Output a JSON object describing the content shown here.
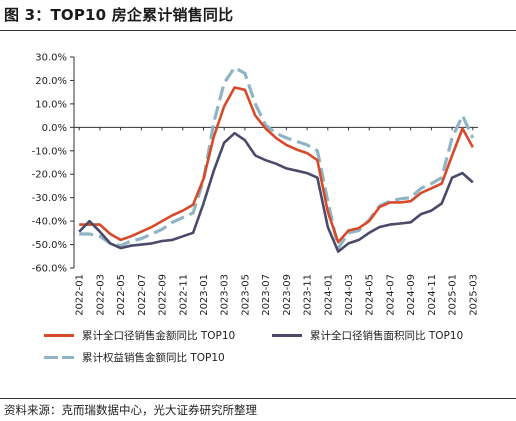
{
  "title": "图 3：TOP10 房企累计销售同比",
  "source": "资料来源：克而瑞数据中心，光大证券研究所整理",
  "chart_data": {
    "type": "line",
    "title": "图 3：TOP10 房企累计销售同比",
    "xlabel": "",
    "ylabel": "",
    "ylim": [
      -60,
      30
    ],
    "yticks": [
      30,
      20,
      10,
      0,
      -10,
      -20,
      -30,
      -40,
      -50,
      -60
    ],
    "ytick_labels": [
      "30.0%",
      "20.0%",
      "10.0%",
      "0.0%",
      "-10.0%",
      "-20.0%",
      "-30.0%",
      "-40.0%",
      "-50.0%",
      "-60.0%"
    ],
    "x": [
      "2022-01",
      "2022-02",
      "2022-03",
      "2022-04",
      "2022-05",
      "2022-06",
      "2022-07",
      "2022-08",
      "2022-09",
      "2022-10",
      "2022-11",
      "2022-12",
      "2023-01",
      "2023-02",
      "2023-03",
      "2023-04",
      "2023-05",
      "2023-06",
      "2023-07",
      "2023-08",
      "2023-09",
      "2023-10",
      "2023-11",
      "2023-12",
      "2024-01",
      "2024-02",
      "2024-03",
      "2024-04",
      "2024-05",
      "2024-06",
      "2024-07",
      "2024-08",
      "2024-09",
      "2024-10",
      "2024-11",
      "2024-12",
      "2025-01",
      "2025-02",
      "2025-03"
    ],
    "xtick_labels": [
      "2022-01",
      "2022-03",
      "2022-05",
      "2022-07",
      "2022-09",
      "2022-11",
      "2023-01",
      "2023-03",
      "2023-05",
      "2023-07",
      "2023-09",
      "2023-11",
      "2024-01",
      "2024-03",
      "2024-05",
      "2024-07",
      "2024-09",
      "2024-11",
      "2025-01",
      "2025-03"
    ],
    "grid": false,
    "legend_position": "bottom",
    "series": [
      {
        "name": "累计全口径销售金额同比 TOP10",
        "color": "#d64a2a",
        "style": "solid",
        "values": [
          -41.5,
          -41.5,
          -41.5,
          -45.5,
          -48,
          -46.5,
          -44.5,
          -42.5,
          -40,
          -37.5,
          -35.5,
          -33,
          -22,
          -4,
          9,
          17,
          16,
          5,
          -0.5,
          -4.5,
          -7.5,
          -9.5,
          -11,
          -14,
          -36,
          -49,
          -44,
          -43,
          -40,
          -34,
          -32,
          -32,
          -31.5,
          -28,
          -26,
          -24,
          -12,
          -0.5,
          -8.5
        ]
      },
      {
        "name": "累计全口径销售面积同比 TOP10",
        "color": "#4b4a6b",
        "style": "solid",
        "values": [
          -44.5,
          -40,
          -44.5,
          -49.5,
          -51.5,
          -50.5,
          -50,
          -49.5,
          -48.5,
          -48,
          -46.5,
          -45,
          -32.5,
          -18.5,
          -6.5,
          -2.5,
          -5.5,
          -12,
          -14,
          -15.5,
          -17.5,
          -18.5,
          -19.5,
          -21.5,
          -42.5,
          -53,
          -49.5,
          -48,
          -45,
          -42.5,
          -41.5,
          -41,
          -40.5,
          -37,
          -35.5,
          -32.5,
          -21.5,
          -19.5,
          -23.5
        ]
      },
      {
        "name": "累计权益销售金额同比 TOP10",
        "color": "#8fb4c4",
        "style": "dashed",
        "values": [
          -45.5,
          -45.5,
          -46.5,
          -49.5,
          -50.5,
          -48.5,
          -47.5,
          -45.5,
          -43.5,
          -40.5,
          -38.5,
          -36.5,
          -22.5,
          2,
          19,
          25.5,
          23,
          10,
          1,
          -2.5,
          -4.5,
          -6,
          -7.5,
          -10,
          -31.5,
          -51.5,
          -45,
          -44,
          -39.5,
          -33.5,
          -31.5,
          -30.5,
          -30,
          -26,
          -24,
          -21.5,
          -4.5,
          5,
          -4.5
        ]
      }
    ]
  }
}
